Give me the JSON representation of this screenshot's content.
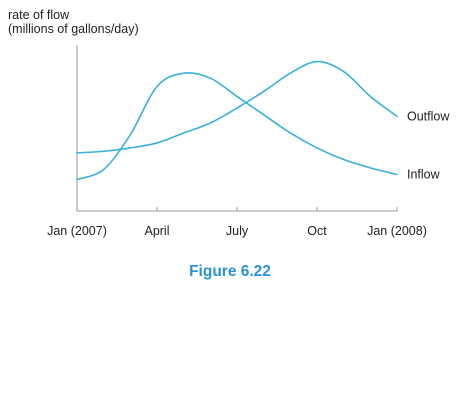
{
  "chart_data": {
    "type": "line",
    "ylabel": [
      "rate of flow",
      "(millions of gallons/day)"
    ],
    "xlabel": "",
    "x_ticks": [
      {
        "label": "Jan (2007)",
        "month": 0
      },
      {
        "label": "April",
        "month": 3
      },
      {
        "label": "July",
        "month": 6
      },
      {
        "label": "Oct",
        "month": 9
      },
      {
        "label": "Jan (2008)",
        "month": 12
      }
    ],
    "x_range_months": [
      0,
      12
    ],
    "y_range": [
      0,
      10
    ],
    "grid": false,
    "legend": "labels at right end of each curve",
    "series": [
      {
        "name": "Outflow",
        "color": "#3ab0e0",
        "x": [
          0,
          1,
          2,
          3,
          4,
          5,
          6,
          7,
          8,
          9,
          10,
          11,
          12
        ],
        "y": [
          3.5,
          3.6,
          3.8,
          4.1,
          4.7,
          5.3,
          6.2,
          7.2,
          8.3,
          9.0,
          8.4,
          6.9,
          5.7
        ]
      },
      {
        "name": "Inflow",
        "color": "#3ab0e0",
        "x": [
          0,
          1,
          2,
          3,
          4,
          5,
          6,
          7,
          8,
          9,
          10,
          11,
          12
        ],
        "y": [
          1.9,
          2.5,
          4.6,
          7.5,
          8.3,
          8.0,
          6.9,
          5.8,
          4.7,
          3.8,
          3.1,
          2.6,
          2.2
        ]
      }
    ]
  },
  "caption": {
    "text": "Figure 6.22",
    "color": "#2a93d5"
  }
}
